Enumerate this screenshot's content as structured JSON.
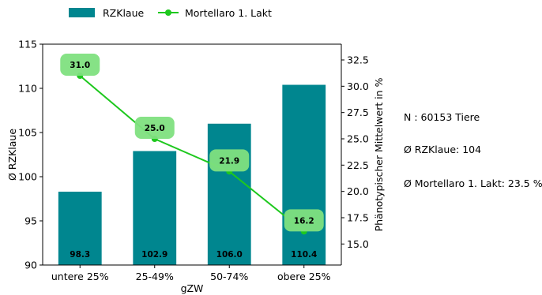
{
  "chart_data": {
    "type": "bar",
    "categories": [
      "untere 25%",
      "25-49%",
      "50-74%",
      "obere 25%"
    ],
    "xlabel": "gZW",
    "series": [
      {
        "name": "RZKlaue",
        "axis": "left",
        "kind": "bar",
        "values": [
          98.3,
          102.9,
          106.0,
          110.4
        ],
        "labels": [
          "98.3",
          "102.9",
          "106.0",
          "110.4"
        ],
        "color": "#00868f"
      },
      {
        "name": "Mortellaro 1. Lakt",
        "axis": "right",
        "kind": "line",
        "values": [
          31.0,
          25.0,
          21.9,
          16.2
        ],
        "labels": [
          "31.0",
          "25.0",
          "21.9",
          "16.2"
        ],
        "color": "#1ec81e",
        "label_box_color": "#7fe07f"
      }
    ],
    "y_left": {
      "label": "Ø RZKlaue",
      "ylim": [
        90,
        115
      ],
      "ticks": [
        90,
        95,
        100,
        105,
        110,
        115
      ],
      "tick_labels": [
        "90",
        "95",
        "100",
        "105",
        "110",
        "115"
      ]
    },
    "y_right": {
      "label": "Phänotypischer Mittelwert in %",
      "ylim": [
        13.0,
        34.0
      ],
      "ticks": [
        15.0,
        17.5,
        20.0,
        22.5,
        25.0,
        27.5,
        30.0,
        32.5
      ],
      "tick_labels": [
        "15.0",
        "17.5",
        "20.0",
        "22.5",
        "25.0",
        "27.5",
        "30.0",
        "32.5"
      ]
    },
    "legend": {
      "placement": "top",
      "entries": [
        "RZKlaue",
        "Mortellaro 1. Lakt"
      ]
    }
  },
  "stats": {
    "n": "N : 60153 Tiere",
    "rzklaue": "Ø RZKlaue: 104",
    "mortellaro": "Ø Mortellaro 1. Lakt: 23.5 %"
  }
}
